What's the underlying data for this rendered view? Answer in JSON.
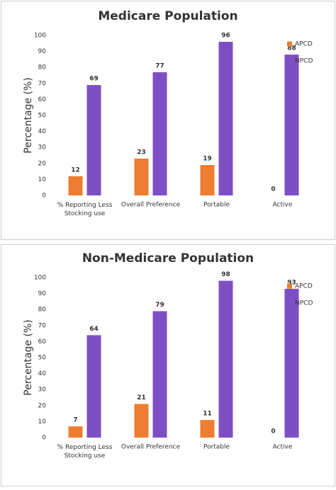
{
  "chart_data": [
    {
      "type": "bar",
      "title": "Medicare Population",
      "ylabel": "Percentage (%)",
      "categories": [
        "% Reporting Less Stocking use",
        "Overall Preference",
        "Portable",
        "Active"
      ],
      "series": [
        {
          "name": "APCD",
          "color": "#ed7d31",
          "values": [
            12,
            23,
            19,
            0
          ]
        },
        {
          "name": "NPCD",
          "color": "#7e4fc4",
          "values": [
            69,
            77,
            96,
            88
          ]
        }
      ],
      "ylim": [
        0,
        100
      ],
      "yticks": [
        0,
        10,
        20,
        30,
        40,
        50,
        60,
        70,
        80,
        90,
        100
      ],
      "grid": false,
      "legend": "upper right"
    },
    {
      "type": "bar",
      "title": "Non-Medicare Population",
      "ylabel": "Percentage (%)",
      "categories": [
        "% Reporting Less Stocking use",
        "Overall Preference",
        "Portable",
        "Active"
      ],
      "series": [
        {
          "name": "APCD",
          "color": "#ed7d31",
          "values": [
            7,
            21,
            11,
            0
          ]
        },
        {
          "name": "NPCD",
          "color": "#7e4fc4",
          "values": [
            64,
            79,
            98,
            93
          ]
        }
      ],
      "ylim": [
        0,
        100
      ],
      "yticks": [
        0,
        10,
        20,
        30,
        40,
        50,
        60,
        70,
        80,
        90,
        100
      ],
      "grid": false,
      "legend": "upper right"
    }
  ]
}
